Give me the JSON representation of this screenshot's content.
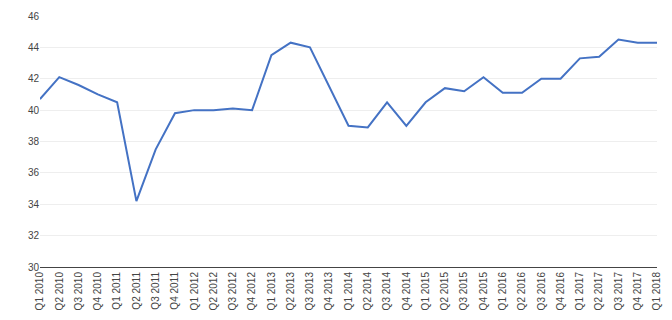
{
  "chart_data": {
    "type": "line",
    "categories": [
      "Q1 2010",
      "Q2 2010",
      "Q3 2010",
      "Q4 2010",
      "Q1 2011",
      "Q2 2011",
      "Q3 2011",
      "Q4 2011",
      "Q1 2012",
      "Q2 2012",
      "Q3 2012",
      "Q4 2012",
      "Q1 2013",
      "Q2 2013",
      "Q3 2013",
      "Q4 2013",
      "Q1 2014",
      "Q2 2014",
      "Q3 2014",
      "Q4 2014",
      "Q1 2015",
      "Q2 2015",
      "Q3 2015",
      "Q4 2015",
      "Q1 2016",
      "Q2 2016",
      "Q3 2016",
      "Q4 2016",
      "Q1 2017",
      "Q2 2017",
      "Q3 2017",
      "Q4 2017",
      "Q1 2018"
    ],
    "values": [
      40.7,
      42.1,
      41.6,
      41.0,
      40.5,
      34.2,
      37.5,
      39.8,
      40.0,
      40.0,
      40.1,
      40.0,
      43.5,
      44.3,
      44.0,
      41.5,
      39.0,
      38.9,
      40.5,
      39.0,
      40.5,
      41.4,
      41.2,
      42.1,
      41.1,
      41.1,
      42.0,
      42.0,
      43.3,
      43.4,
      44.5,
      44.3,
      44.3
    ],
    "color": "#4472C4",
    "ylim": [
      30,
      46
    ],
    "yticks": [
      30,
      32,
      34,
      36,
      38,
      40,
      42,
      44,
      46
    ],
    "grid": true
  }
}
